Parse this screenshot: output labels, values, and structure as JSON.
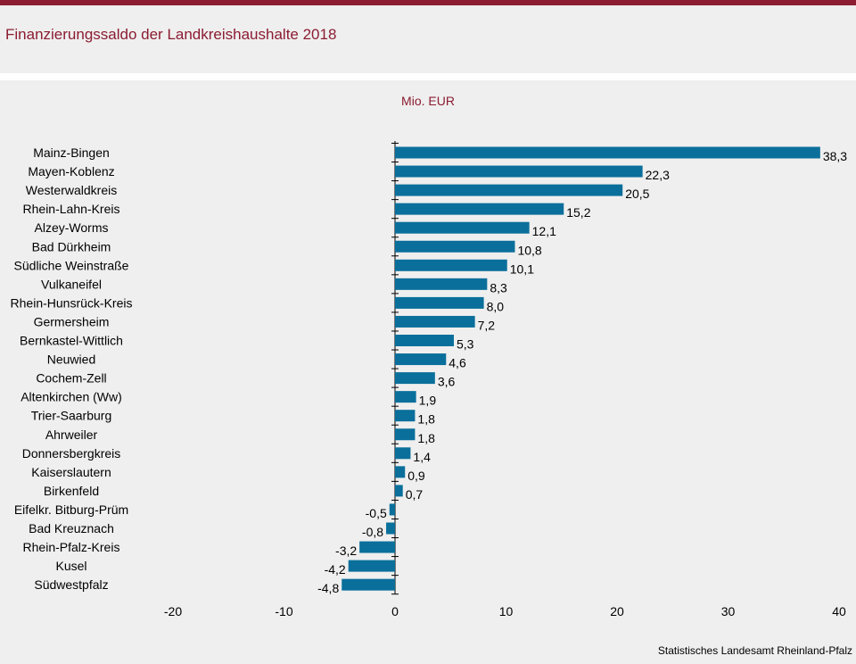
{
  "title": "Finanzierungssaldo der Landkreishaushalte 2018",
  "source": "Statistisches Landesamt Rheinland-Pfalz",
  "colors": {
    "accent": "#8b1c31",
    "bar": "#0a6f9b",
    "background": "#efefef"
  },
  "chart_data": {
    "type": "bar",
    "orientation": "horizontal",
    "title": "Finanzierungssaldo der Landkreishaushalte 2018",
    "unit": "Mio. EUR",
    "xlim": [
      -20,
      40
    ],
    "xticks": [
      -20,
      -10,
      0,
      10,
      20,
      30,
      40
    ],
    "grid": false,
    "categories": [
      "Mainz-Bingen",
      "Mayen-Koblenz",
      "Westerwaldkreis",
      "Rhein-Lahn-Kreis",
      "Alzey-Worms",
      "Bad Dürkheim",
      "Südliche Weinstraße",
      "Vulkaneifel",
      "Rhein-Hunsrück-Kreis",
      "Germersheim",
      "Bernkastel-Wittlich",
      "Neuwied",
      "Cochem-Zell",
      "Altenkirchen (Ww)",
      "Trier-Saarburg",
      "Ahrweiler",
      "Donnersbergkreis",
      "Kaiserslautern",
      "Birkenfeld",
      "Eifelkr. Bitburg-Prüm",
      "Bad Kreuznach",
      "Rhein-Pfalz-Kreis",
      "Kusel",
      "Südwestpfalz"
    ],
    "values": [
      38.3,
      22.3,
      20.5,
      15.2,
      12.1,
      10.8,
      10.1,
      8.3,
      8.0,
      7.2,
      5.3,
      4.6,
      3.6,
      1.9,
      1.8,
      1.8,
      1.4,
      0.9,
      0.7,
      -0.5,
      -0.8,
      -3.2,
      -4.2,
      -4.8
    ],
    "labels": [
      "38,3",
      "22,3",
      "20,5",
      "15,2",
      "12,1",
      "10,8",
      "10,1",
      "8,3",
      "8,0",
      "7,2",
      "5,3",
      "4,6",
      "3,6",
      "1,9",
      "1,8",
      "1,8",
      "1,4",
      "0,9",
      "0,7",
      "-0,5",
      "-0,8",
      "-3,2",
      "-4,2",
      "-4,8"
    ],
    "xtick_labels": [
      "-20",
      "-10",
      "0",
      "10",
      "20",
      "30",
      "40"
    ]
  }
}
